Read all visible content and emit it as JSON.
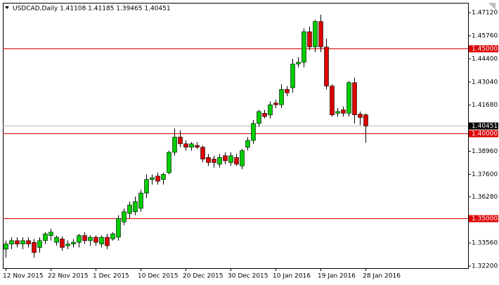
{
  "chart_data": {
    "type": "candlestick",
    "title": "USDCAD,Daily  1.41108 1.41185 1.39465 1.40451",
    "categories": [
      "12 Nov 2015",
      null,
      null,
      null,
      null,
      null,
      null,
      null,
      "22 Nov 2015",
      null,
      null,
      null,
      null,
      null,
      null,
      null,
      "1 Dec 2015",
      null,
      null,
      null,
      null,
      null,
      null,
      null,
      "10 Dec 2015",
      null,
      null,
      null,
      null,
      null,
      null,
      null,
      "20 Dec 2015",
      null,
      null,
      null,
      null,
      null,
      null,
      null,
      "30 Dec 2015",
      null,
      null,
      null,
      null,
      null,
      null,
      null,
      "10 Jan 2016",
      null,
      null,
      null,
      null,
      null,
      null,
      null,
      "19 Jan 2016",
      null,
      null,
      null,
      null,
      null,
      null,
      null,
      "28 Jan 2016"
    ],
    "open": [
      1.332,
      1.335,
      1.337,
      1.335,
      1.337,
      1.336,
      1.333,
      1.337,
      1.34,
      1.336,
      1.338,
      1.334,
      1.335,
      1.336,
      1.34,
      1.337,
      1.339,
      1.335,
      1.339,
      1.338,
      1.339,
      1.348,
      1.353,
      1.354,
      1.356,
      1.365,
      1.373,
      1.375,
      1.373,
      1.377,
      1.389,
      1.398,
      1.394,
      1.392,
      1.393,
      1.392,
      1.386,
      1.385,
      1.382,
      1.387,
      1.383,
      1.386,
      1.381,
      1.392,
      1.396,
      1.406,
      1.412,
      1.411,
      1.418,
      1.417,
      1.426,
      1.427,
      1.441,
      1.442,
      1.46,
      1.451,
      1.466,
      1.451,
      1.428,
      1.412,
      1.414,
      1.412,
      1.43,
      1.4115,
      1.41108
    ],
    "high": [
      1.337,
      1.339,
      1.339,
      1.339,
      1.339,
      1.338,
      1.339,
      1.342,
      1.344,
      1.34,
      1.3395,
      1.337,
      1.338,
      1.341,
      1.342,
      1.34,
      1.34,
      1.34,
      1.341,
      1.342,
      1.352,
      1.356,
      1.36,
      1.363,
      1.367,
      1.376,
      1.376,
      1.377,
      1.377,
      1.39,
      1.403,
      1.402,
      1.396,
      1.395,
      1.395,
      1.393,
      1.388,
      1.387,
      1.388,
      1.389,
      1.389,
      1.388,
      1.391,
      1.398,
      1.408,
      1.414,
      1.414,
      1.419,
      1.42,
      1.429,
      1.428,
      1.444,
      1.445,
      1.462,
      1.463,
      1.467,
      1.47,
      1.456,
      1.429,
      1.415,
      1.416,
      1.431,
      1.433,
      1.413,
      1.41185
    ],
    "low": [
      1.327,
      1.332,
      1.333,
      1.332,
      1.333,
      1.327,
      1.33,
      1.335,
      1.337,
      1.334,
      1.331,
      1.332,
      1.333,
      1.333,
      1.335,
      1.334,
      1.334,
      1.333,
      1.332,
      1.337,
      1.337,
      1.346,
      1.35,
      1.352,
      1.354,
      1.362,
      1.37,
      1.37,
      1.37,
      1.376,
      1.387,
      1.392,
      1.39,
      1.39,
      1.391,
      1.383,
      1.381,
      1.38,
      1.38,
      1.382,
      1.381,
      1.381,
      1.379,
      1.39,
      1.394,
      1.404,
      1.409,
      1.409,
      1.415,
      1.415,
      1.422,
      1.424,
      1.439,
      1.439,
      1.449,
      1.448,
      1.448,
      1.426,
      1.41,
      1.41,
      1.41,
      1.41,
      1.406,
      1.405,
      1.39465
    ],
    "close": [
      1.335,
      1.337,
      1.335,
      1.337,
      1.335,
      1.33,
      1.337,
      1.341,
      1.342,
      1.339,
      1.333,
      1.335,
      1.336,
      1.34,
      1.337,
      1.339,
      1.336,
      1.339,
      1.334,
      1.341,
      1.35,
      1.354,
      1.358,
      1.36,
      1.365,
      1.373,
      1.374,
      1.372,
      1.376,
      1.389,
      1.398,
      1.394,
      1.392,
      1.394,
      1.392,
      1.385,
      1.383,
      1.383,
      1.386,
      1.384,
      1.387,
      1.382,
      1.39,
      1.396,
      1.406,
      1.413,
      1.41,
      1.417,
      1.417,
      1.426,
      1.424,
      1.441,
      1.442,
      1.46,
      1.451,
      1.466,
      1.451,
      1.428,
      1.411,
      1.413,
      1.412,
      1.43,
      1.411,
      1.4095,
      1.40451
    ],
    "up_color": "#00cc00",
    "down_color": "#dd0000",
    "level_color": "#dd0000",
    "ylim": [
      1.3208,
      1.4766
    ],
    "yticks": [
      {
        "value": 1.4712,
        "label": "1.47120"
      },
      {
        "value": 1.4576,
        "label": "1.45760"
      },
      {
        "value": 1.444,
        "label": "1.44400"
      },
      {
        "value": 1.4304,
        "label": "1.43040"
      },
      {
        "value": 1.4168,
        "label": "1.41680"
      },
      {
        "value": 1.3896,
        "label": "1.38960"
      },
      {
        "value": 1.376,
        "label": "1.37600"
      },
      {
        "value": 1.3628,
        "label": "1.36280"
      },
      {
        "value": 1.3356,
        "label": "1.33560"
      },
      {
        "value": 1.322,
        "label": "1.32200"
      }
    ],
    "levels": [
      {
        "value": 1.45,
        "label": "1.45000"
      },
      {
        "value": 1.4,
        "label": "1.40000"
      },
      {
        "value": 1.35,
        "label": "1.35000"
      }
    ],
    "current_price": {
      "value": 1.40451,
      "label": "1.40451"
    }
  }
}
